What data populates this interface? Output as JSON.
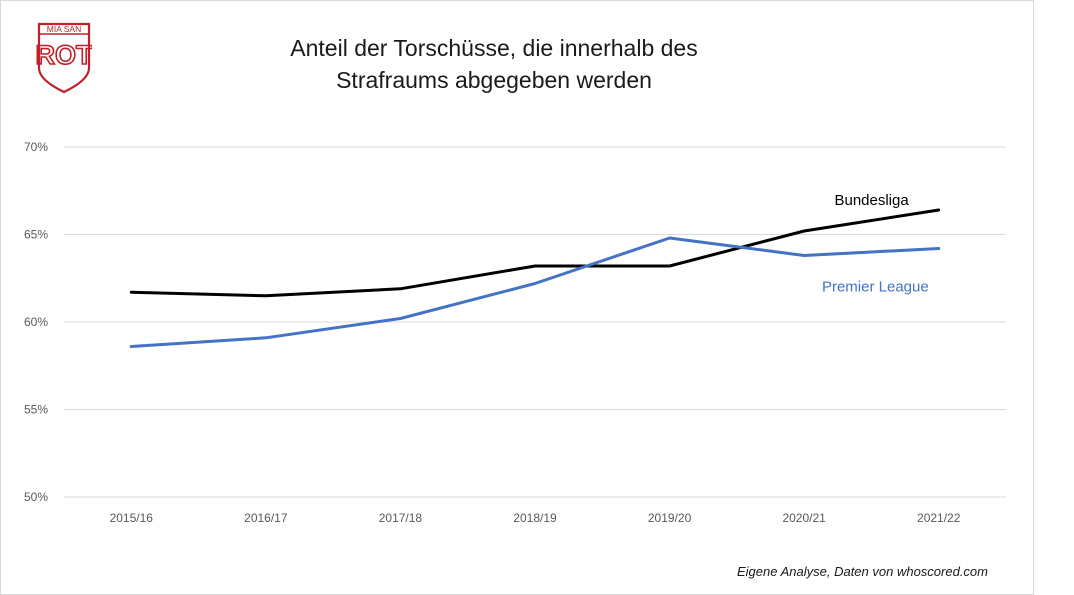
{
  "logo": {
    "top_text": "MIA SAN",
    "main_text": "ROT",
    "color": "#c0202a"
  },
  "title_lines": [
    "Anteil der Torschüsse, die innerhalb des",
    "Strafraums abgegeben werden"
  ],
  "footer": "Eigene Analyse,  Daten von whoscored.com",
  "chart_data": {
    "type": "line",
    "title": "Anteil der Torschüsse, die innerhalb des Strafraums abgegeben werden",
    "xlabel": "",
    "ylabel": "",
    "categories": [
      "2015/16",
      "2016/17",
      "2017/18",
      "2018/19",
      "2019/20",
      "2020/21",
      "2021/22"
    ],
    "ylim": [
      50,
      70
    ],
    "yticks": [
      50,
      55,
      60,
      65,
      70
    ],
    "ytick_labels": [
      "50%",
      "55%",
      "60%",
      "65%",
      "70%"
    ],
    "grid": true,
    "series": [
      {
        "name": "Bundesliga",
        "color": "#000000",
        "values": [
          61.7,
          61.5,
          61.9,
          63.2,
          63.2,
          65.2,
          66.4
        ]
      },
      {
        "name": "Premier League",
        "color": "#4472c4",
        "values": [
          58.6,
          59.1,
          60.2,
          62.2,
          64.8,
          63.8,
          64.2
        ]
      }
    ]
  }
}
